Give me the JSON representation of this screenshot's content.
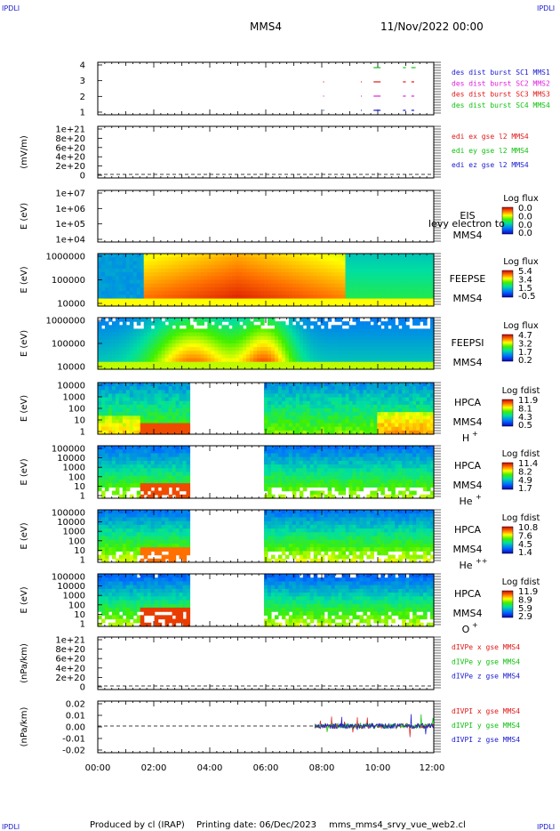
{
  "header": {
    "corner_tl": "IPDLI",
    "corner_tr": "IPDLI",
    "corner_bl": "IPDLI",
    "corner_br": "IPDLI",
    "spacecraft": "MMS4",
    "datetime": "11/Nov/2022 00:00"
  },
  "footer": {
    "produced": "Produced by cl (IRAP)",
    "printing": "Printing date: 06/Dec/2023",
    "file": "mms_mms4_srvy_vue_web2.cl"
  },
  "colors": {
    "blue": "#1a1ad0",
    "magenta": "#e020e0",
    "red": "#e01818",
    "green": "#10c010"
  },
  "chart_data": {
    "type": "multi-panel time series / spectrogram",
    "x_ticks": [
      "00:00",
      "02:00",
      "04:00",
      "06:00",
      "08:00",
      "10:00",
      "12:00"
    ],
    "x_range_hours": [
      0,
      12
    ],
    "panels": [
      {
        "id": "burst",
        "yticks": [
          "4",
          "3",
          "2",
          "1"
        ],
        "legend": [
          {
            "text": "des dist burst SC1 MMS1",
            "color": "#1a1ad0"
          },
          {
            "text": "des dist burst SC2 MMS2",
            "color": "#e020e0"
          },
          {
            "text": "des dist burst SC3 MMS3",
            "color": "#e01818"
          },
          {
            "text": "des dist burst SC4 MMS4",
            "color": "#10c010"
          }
        ],
        "intervals": [
          {
            "sc": 4,
            "start_h": 9.85,
            "end_h": 10.1
          },
          {
            "sc": 4,
            "start_h": 10.9,
            "end_h": 11.0
          },
          {
            "sc": 4,
            "start_h": 11.2,
            "end_h": 11.35
          },
          {
            "sc": 3,
            "start_h": 8.05,
            "end_h": 8.07
          },
          {
            "sc": 3,
            "start_h": 9.4,
            "end_h": 9.42
          },
          {
            "sc": 3,
            "start_h": 9.85,
            "end_h": 10.1
          },
          {
            "sc": 3,
            "start_h": 10.9,
            "end_h": 11.0
          },
          {
            "sc": 3,
            "start_h": 11.2,
            "end_h": 11.3
          },
          {
            "sc": 2,
            "start_h": 8.05,
            "end_h": 8.07
          },
          {
            "sc": 2,
            "start_h": 9.4,
            "end_h": 9.42
          },
          {
            "sc": 2,
            "start_h": 9.85,
            "end_h": 10.1
          },
          {
            "sc": 2,
            "start_h": 10.9,
            "end_h": 11.0
          },
          {
            "sc": 2,
            "start_h": 11.2,
            "end_h": 11.3
          },
          {
            "sc": 1,
            "start_h": 8.05,
            "end_h": 8.07
          },
          {
            "sc": 1,
            "start_h": 9.4,
            "end_h": 9.42
          },
          {
            "sc": 1,
            "start_h": 9.85,
            "end_h": 10.1
          },
          {
            "sc": 1,
            "start_h": 10.9,
            "end_h": 11.0
          },
          {
            "sc": 1,
            "start_h": 11.2,
            "end_h": 11.3
          }
        ]
      },
      {
        "id": "edi",
        "ylabel": "(mV/m)",
        "yticks": [
          "1e+21",
          "8e+20",
          "6e+20",
          "4e+20",
          "2e+20",
          "0"
        ],
        "legend": [
          {
            "text": "edi ex gse l2 MMS4",
            "color": "#e01818"
          },
          {
            "text": "edi ey gse l2 MMS4",
            "color": "#10c010"
          },
          {
            "text": "edi ez gse l2 MMS4",
            "color": "#1a1ad0"
          }
        ]
      },
      {
        "id": "eis",
        "ylabel": "E (eV)",
        "yticks": [
          "1e+07",
          "1e+06",
          "1e+05",
          "1e+04"
        ],
        "labels": [
          "EIS",
          "MMS4"
        ],
        "overlay": "levy electron to",
        "cbar_title": "Log flux",
        "cbar_ticks": [
          "0.0",
          "0.0",
          "0.0",
          "0.0"
        ]
      },
      {
        "id": "feepse",
        "ylabel": "E (eV)",
        "yticks": [
          "1000000",
          "100000",
          "10000"
        ],
        "labels": [
          "FEEPSE",
          "MMS4"
        ],
        "cbar_title": "Log flux",
        "cbar_ticks": [
          "5.4",
          "3.4",
          "1.5",
          "-0.5"
        ]
      },
      {
        "id": "feepsi",
        "ylabel": "E (eV)",
        "yticks": [
          "1000000",
          "100000",
          "10000"
        ],
        "labels": [
          "FEEPSI",
          "MMS4"
        ],
        "cbar_title": "Log flux",
        "cbar_ticks": [
          "4.7",
          "3.2",
          "1.7",
          "0.2"
        ]
      },
      {
        "id": "hpca_h",
        "ylabel": "E (eV)",
        "yticks": [
          "10000",
          "1000",
          "100",
          "10",
          "1"
        ],
        "labels": [
          "HPCA",
          "MMS4",
          "H",
          "+"
        ],
        "cbar_title": "Log fdist",
        "cbar_ticks": [
          "11.9",
          "8.1",
          "4.3",
          "0.5"
        ],
        "data_gap_hours": [
          3.25,
          5.9
        ]
      },
      {
        "id": "hpca_he1",
        "ylabel": "E (eV)",
        "yticks": [
          "100000",
          "10000",
          "1000",
          "100",
          "10",
          "1"
        ],
        "labels": [
          "HPCA",
          "MMS4",
          "He",
          "+"
        ],
        "cbar_title": "Log fdist",
        "cbar_ticks": [
          "11.4",
          "8.2",
          "4.9",
          "1.7"
        ],
        "data_gap_hours": [
          3.25,
          5.9
        ]
      },
      {
        "id": "hpca_he2",
        "ylabel": "E (eV)",
        "yticks": [
          "100000",
          "10000",
          "1000",
          "100",
          "10",
          "1"
        ],
        "labels": [
          "HPCA",
          "MMS4",
          "He",
          "++"
        ],
        "cbar_title": "Log fdist",
        "cbar_ticks": [
          "10.8",
          "7.6",
          "4.5",
          "1.4"
        ],
        "data_gap_hours": [
          3.25,
          5.9
        ]
      },
      {
        "id": "hpca_o",
        "ylabel": "E (eV)",
        "yticks": [
          "100000",
          "10000",
          "1000",
          "100",
          "10",
          "1"
        ],
        "labels": [
          "HPCA",
          "MMS4",
          "O",
          "+"
        ],
        "cbar_title": "Log fdist",
        "cbar_ticks": [
          "11.9",
          "8.9",
          "5.9",
          "2.9"
        ],
        "data_gap_hours": [
          3.25,
          5.9
        ]
      },
      {
        "id": "divpe",
        "ylabel": "(nPa/km)",
        "yticks": [
          "1e+21",
          "8e+20",
          "6e+20",
          "4e+20",
          "2e+20",
          "0"
        ],
        "legend": [
          {
            "text": "dIVPe x gse MMS4",
            "color": "#e01818"
          },
          {
            "text": "dIVPe y gse MMS4",
            "color": "#10c010"
          },
          {
            "text": "dIVPe z gse MMS4",
            "color": "#1a1ad0"
          }
        ]
      },
      {
        "id": "divpi",
        "ylabel": "(nPa/km)",
        "yticks": [
          "0.02",
          "0.01",
          "0.00",
          "-0.01",
          "-0.02"
        ],
        "ylim": [
          -0.025,
          0.025
        ],
        "legend": [
          {
            "text": "dIVPI x gse MMS4",
            "color": "#e01818"
          },
          {
            "text": "dIVPI y gse MMS4",
            "color": "#10c010"
          },
          {
            "text": "dIVPI z gse MMS4",
            "color": "#1a1ad0"
          }
        ],
        "data_start_hour": 7.75
      }
    ]
  }
}
